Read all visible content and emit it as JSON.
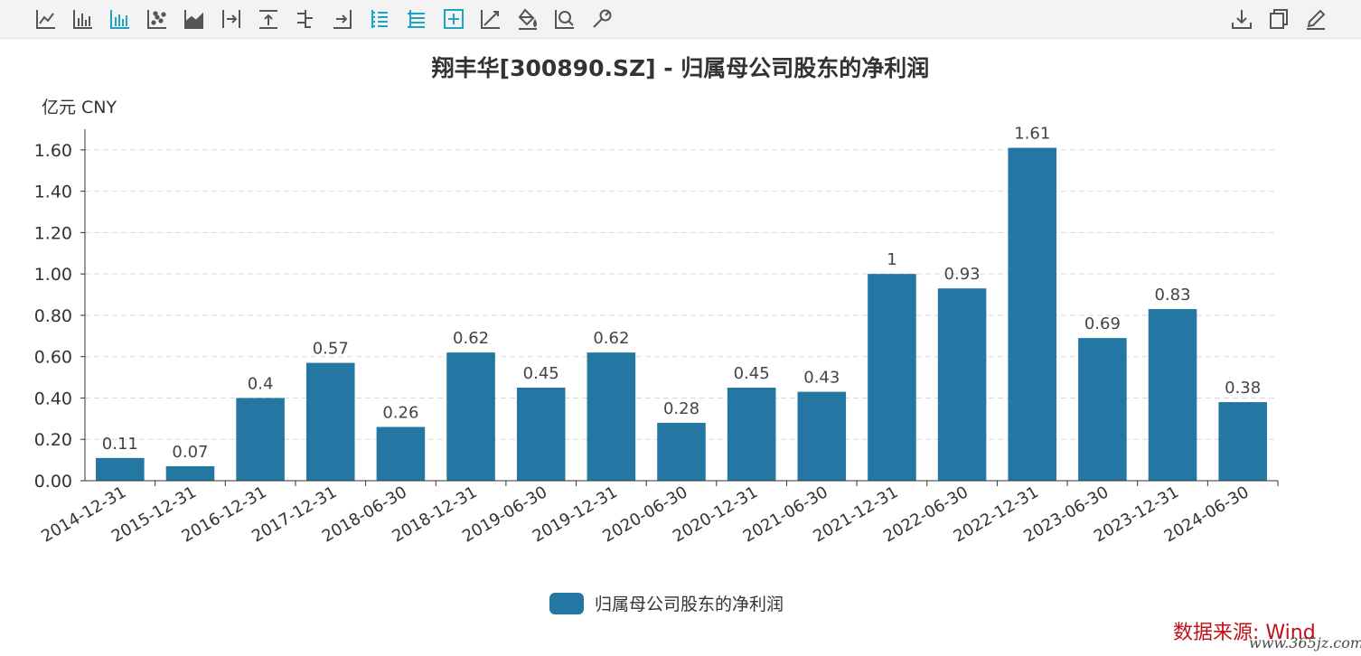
{
  "toolbar": {
    "left_tools": [
      {
        "name": "line-chart-icon",
        "active": false
      },
      {
        "name": "bar-chart-icon",
        "active": false
      },
      {
        "name": "stacked-bar-icon",
        "active": true
      },
      {
        "name": "scatter-icon",
        "active": false
      },
      {
        "name": "area-chart-icon",
        "active": false
      },
      {
        "name": "move-right-icon",
        "active": false
      },
      {
        "name": "move-up-icon",
        "active": false
      },
      {
        "name": "align-rows-icon",
        "active": false
      },
      {
        "name": "move-end-icon",
        "active": false
      },
      {
        "name": "list-left-icon",
        "active": true
      },
      {
        "name": "list-tree-icon",
        "active": true
      },
      {
        "name": "add-box-icon",
        "active": true
      },
      {
        "name": "trend-line-icon",
        "active": false
      },
      {
        "name": "fill-bucket-icon",
        "active": false
      },
      {
        "name": "zoom-icon",
        "active": false
      },
      {
        "name": "wrench-icon",
        "active": false
      }
    ],
    "right_tools": [
      {
        "name": "download-icon"
      },
      {
        "name": "copy-icon"
      },
      {
        "name": "edit-icon"
      }
    ],
    "colors": {
      "icon": "#555555",
      "active": "#1aa4c6"
    }
  },
  "chart_data": {
    "type": "bar",
    "title": "翔丰华[300890.SZ] - 归属母公司股东的净利润",
    "ylabel": "亿元  CNY",
    "ylim": [
      0,
      1.7
    ],
    "yticks": [
      "0.00",
      "0.20",
      "0.40",
      "0.60",
      "0.80",
      "1.00",
      "1.20",
      "1.40",
      "1.60"
    ],
    "categories": [
      "2014-12-31",
      "2015-12-31",
      "2016-12-31",
      "2017-12-31",
      "2018-06-30",
      "2018-12-31",
      "2019-06-30",
      "2019-12-31",
      "2020-06-30",
      "2020-12-31",
      "2021-06-30",
      "2021-12-31",
      "2022-06-30",
      "2022-12-31",
      "2023-06-30",
      "2023-12-31",
      "2024-06-30"
    ],
    "series": [
      {
        "name": "归属母公司股东的净利润",
        "values": [
          0.11,
          0.07,
          0.4,
          0.57,
          0.26,
          0.62,
          0.45,
          0.62,
          0.28,
          0.45,
          0.43,
          1,
          0.93,
          1.61,
          0.69,
          0.83,
          0.38
        ],
        "labels": [
          "0.11",
          "0.07",
          "0.4",
          "0.57",
          "0.26",
          "0.62",
          "0.45",
          "0.62",
          "0.28",
          "0.45",
          "0.43",
          "1",
          "0.93",
          "1.61",
          "0.69",
          "0.83",
          "0.38"
        ],
        "color": "#2477a2"
      }
    ],
    "grid": "horizontal-dashed",
    "legend_position": "bottom-center"
  },
  "source_text": "数据来源: Wind",
  "watermark_text": "www.365jz.com"
}
